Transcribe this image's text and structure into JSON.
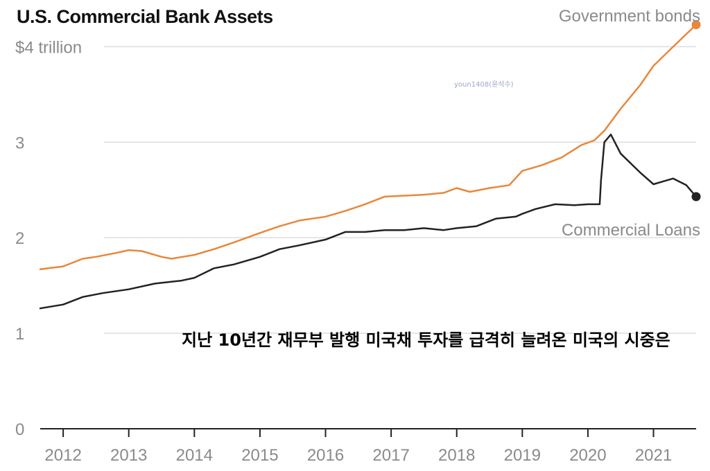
{
  "chart_data": {
    "type": "line",
    "title": "U.S. Commercial Bank Assets",
    "y_tick_labels": [
      "0",
      "1",
      "2",
      "3",
      "$4 trillion"
    ],
    "y_ticks": [
      0,
      1,
      2,
      3,
      4
    ],
    "ylim": [
      0,
      4.3
    ],
    "x_tick_labels": [
      "2012",
      "2013",
      "2014",
      "2015",
      "2016",
      "2017",
      "2018",
      "2019",
      "2020",
      "2021"
    ],
    "x_ticks": [
      2012,
      2013,
      2014,
      2015,
      2016,
      2017,
      2018,
      2019,
      2020,
      2021
    ],
    "xlim": [
      2011.65,
      2021.65
    ],
    "grid": true,
    "series": [
      {
        "name": "Government bonds",
        "color": "#e8873a",
        "x": [
          2011.65,
          2012.0,
          2012.3,
          2012.5,
          2012.8,
          2013.0,
          2013.2,
          2013.5,
          2013.65,
          2014.0,
          2014.3,
          2014.6,
          2015.0,
          2015.3,
          2015.6,
          2016.0,
          2016.3,
          2016.6,
          2016.9,
          2017.2,
          2017.5,
          2017.8,
          2018.0,
          2018.2,
          2018.5,
          2018.8,
          2019.0,
          2019.3,
          2019.6,
          2019.9,
          2020.1,
          2020.25,
          2020.5,
          2020.8,
          2021.0,
          2021.3,
          2021.65
        ],
        "values": [
          1.67,
          1.7,
          1.78,
          1.8,
          1.84,
          1.87,
          1.86,
          1.8,
          1.78,
          1.82,
          1.88,
          1.95,
          2.05,
          2.12,
          2.18,
          2.22,
          2.28,
          2.35,
          2.43,
          2.44,
          2.45,
          2.47,
          2.52,
          2.48,
          2.52,
          2.55,
          2.7,
          2.76,
          2.84,
          2.97,
          3.02,
          3.12,
          3.35,
          3.6,
          3.8,
          4.0,
          4.23
        ]
      },
      {
        "name": "Commercial Loans",
        "color": "#222222",
        "x": [
          2011.65,
          2012.0,
          2012.3,
          2012.6,
          2013.0,
          2013.4,
          2013.8,
          2014.0,
          2014.3,
          2014.6,
          2015.0,
          2015.3,
          2015.6,
          2016.0,
          2016.3,
          2016.6,
          2016.9,
          2017.2,
          2017.5,
          2017.8,
          2018.0,
          2018.3,
          2018.6,
          2018.9,
          2019.0,
          2019.2,
          2019.5,
          2019.8,
          2020.0,
          2020.18,
          2020.2,
          2020.25,
          2020.35,
          2020.5,
          2020.8,
          2021.0,
          2021.1,
          2021.3,
          2021.5,
          2021.65
        ],
        "values": [
          1.26,
          1.3,
          1.38,
          1.42,
          1.46,
          1.52,
          1.55,
          1.58,
          1.68,
          1.72,
          1.8,
          1.88,
          1.92,
          1.98,
          2.06,
          2.06,
          2.08,
          2.08,
          2.1,
          2.08,
          2.1,
          2.12,
          2.2,
          2.22,
          2.25,
          2.3,
          2.35,
          2.34,
          2.35,
          2.35,
          2.6,
          3.0,
          3.08,
          2.88,
          2.68,
          2.56,
          2.58,
          2.62,
          2.55,
          2.43
        ]
      }
    ],
    "annotations": [
      "youn1408(윤석수)",
      "지난 10년간 재무부 발행 미국채 투자를 급격히 늘려온 미국의 시중은"
    ]
  }
}
